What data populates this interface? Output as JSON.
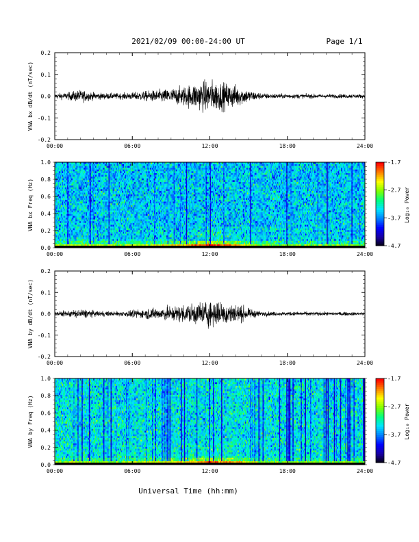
{
  "header": {
    "title": "2021/02/09  00:00-24:00 UT",
    "page": "Page 1/1"
  },
  "footer": {
    "xlabel": "Universal Time (hh:mm)"
  },
  "colors": {
    "trace": "#000000",
    "colormap": [
      "#000000",
      "#1a00a0",
      "#0000ff",
      "#0080ff",
      "#00e5ff",
      "#00ff80",
      "#80ff00",
      "#ffff00",
      "#ff8000",
      "#ff0000"
    ]
  },
  "chart_data": [
    {
      "type": "line",
      "ylabel": "VNA bx dB/dt (nT/sec)",
      "xlim": [
        "00:00",
        "24:00"
      ],
      "ylim": [
        -0.2,
        0.2
      ],
      "x_ticks": [
        "00:00",
        "06:00",
        "12:00",
        "18:00",
        "24:00"
      ],
      "y_ticks": [
        "0.2",
        "0.1",
        "0.0",
        "-0.1",
        "-0.2"
      ],
      "envelope": {
        "hours": [
          0,
          1,
          2,
          3,
          4,
          5,
          6,
          7,
          8,
          9,
          10,
          11,
          12,
          13,
          14,
          15,
          16,
          17,
          18,
          19,
          20,
          21,
          22,
          23,
          24
        ],
        "amplitude": [
          0.01,
          0.015,
          0.025,
          0.015,
          0.012,
          0.012,
          0.015,
          0.02,
          0.025,
          0.03,
          0.04,
          0.055,
          0.065,
          0.055,
          0.045,
          0.025,
          0.012,
          0.01,
          0.009,
          0.009,
          0.009,
          0.008,
          0.008,
          0.008,
          0.008
        ]
      }
    },
    {
      "type": "heatmap",
      "ylabel": "VNA bx Freq (Hz)",
      "xlim": [
        "00:00",
        "24:00"
      ],
      "ylim": [
        0.0,
        1.0
      ],
      "x_ticks": [
        "00:00",
        "06:00",
        "12:00",
        "18:00",
        "24:00"
      ],
      "y_ticks": [
        "1.0",
        "0.8",
        "0.6",
        "0.4",
        "0.2",
        "0.0"
      ],
      "colorbar": {
        "label": "Log₁₀ Power",
        "ticks": [
          "-1.7",
          "-2.7",
          "-3.7",
          "-4.7"
        ],
        "range": [
          -4.7,
          -1.7
        ]
      }
    },
    {
      "type": "line",
      "ylabel": "VNA by dB/dt (nT/sec)",
      "xlim": [
        "00:00",
        "24:00"
      ],
      "ylim": [
        -0.2,
        0.2
      ],
      "x_ticks": [
        "00:00",
        "06:00",
        "12:00",
        "18:00",
        "24:00"
      ],
      "y_ticks": [
        "0.2",
        "0.1",
        "0.0",
        "-0.1",
        "-0.2"
      ],
      "envelope": {
        "hours": [
          0,
          1,
          2,
          3,
          4,
          5,
          6,
          7,
          8,
          9,
          10,
          11,
          12,
          13,
          14,
          15,
          16,
          17,
          18,
          19,
          20,
          21,
          22,
          23,
          24
        ],
        "amplitude": [
          0.008,
          0.012,
          0.02,
          0.012,
          0.01,
          0.01,
          0.015,
          0.02,
          0.025,
          0.03,
          0.035,
          0.045,
          0.055,
          0.045,
          0.04,
          0.02,
          0.01,
          0.008,
          0.008,
          0.008,
          0.008,
          0.007,
          0.007,
          0.007,
          0.007
        ]
      }
    },
    {
      "type": "heatmap",
      "ylabel": "VNA by Freq (Hz)",
      "xlim": [
        "00:00",
        "24:00"
      ],
      "ylim": [
        0.0,
        1.0
      ],
      "x_ticks": [
        "00:00",
        "06:00",
        "12:00",
        "18:00",
        "24:00"
      ],
      "y_ticks": [
        "1.0",
        "0.8",
        "0.6",
        "0.4",
        "0.2",
        "0.0"
      ],
      "colorbar": {
        "label": "Log₁₀ Power",
        "ticks": [
          "-1.7",
          "-2.7",
          "-3.7",
          "-4.7"
        ],
        "range": [
          -4.7,
          -1.7
        ]
      }
    }
  ]
}
